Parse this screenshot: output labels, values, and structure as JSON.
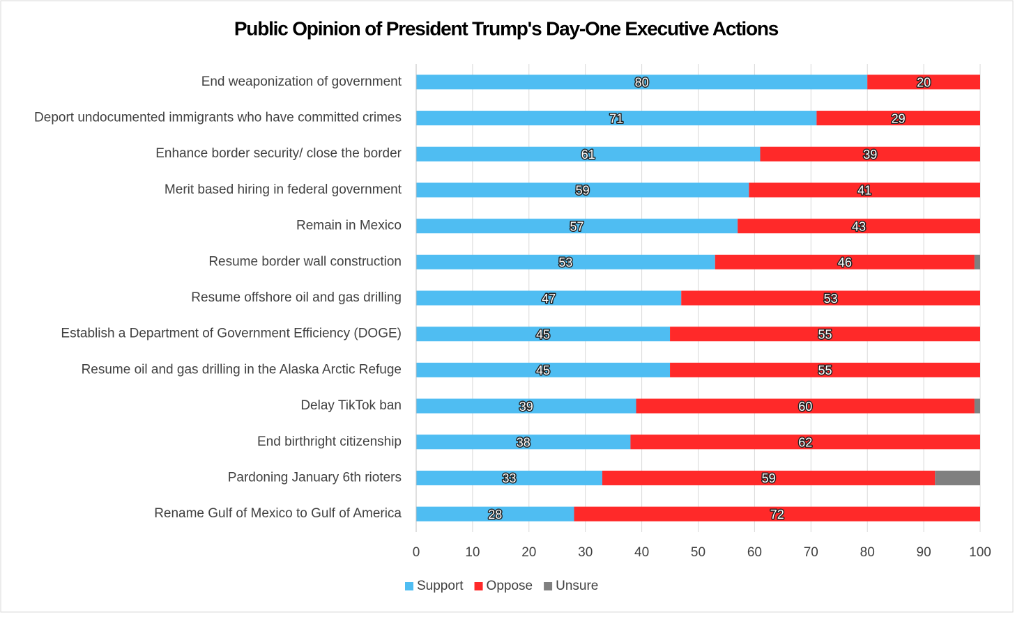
{
  "chart_data": {
    "type": "bar",
    "orientation": "horizontal",
    "stacked": true,
    "title": "Public Opinion of President Trump's Day-One Executive Actions",
    "categories": [
      "End weaponization of government",
      "Deport undocumented immigrants who have committed crimes",
      "Enhance border security/ close the border",
      "Merit based hiring in federal government",
      "Remain in Mexico",
      "Resume border wall construction",
      "Resume offshore oil and gas drilling",
      "Establish a Department of Government Efficiency (DOGE)",
      "Resume oil and gas drilling in the Alaska Arctic Refuge",
      "Delay TikTok ban",
      "End birthright citizenship",
      "Pardoning January 6th rioters",
      "Rename Gulf of Mexico to Gulf of America"
    ],
    "series": [
      {
        "name": "Support",
        "color": "#4fbdf2",
        "data_labels": true,
        "values": [
          80,
          71,
          61,
          59,
          57,
          53,
          47,
          45,
          45,
          39,
          38,
          33,
          28
        ]
      },
      {
        "name": "Oppose",
        "color": "#ff2929",
        "data_labels": true,
        "values": [
          20,
          29,
          39,
          41,
          43,
          46,
          53,
          55,
          55,
          60,
          62,
          59,
          72
        ]
      },
      {
        "name": "Unsure",
        "color": "#808080",
        "data_labels": false,
        "values": [
          0,
          0,
          0,
          0,
          0,
          1,
          0,
          0,
          0,
          1,
          0,
          8,
          0
        ]
      }
    ],
    "xlim": [
      0,
      100
    ],
    "xticks": [
      0,
      10,
      20,
      30,
      40,
      50,
      60,
      70,
      80,
      90,
      100
    ],
    "grid": true,
    "legend": "bottom"
  }
}
